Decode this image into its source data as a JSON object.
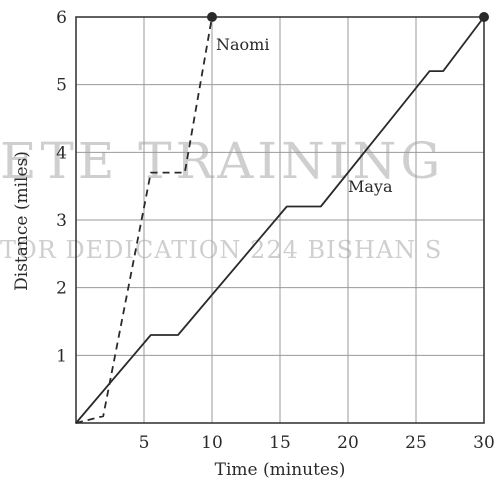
{
  "chart_data": {
    "type": "line",
    "xlabel": "Time (minutes)",
    "ylabel": "Distance (miles)",
    "xlim": [
      0,
      30
    ],
    "ylim": [
      0,
      6
    ],
    "xticks": [
      5,
      10,
      15,
      20,
      25,
      30
    ],
    "yticks": [
      1,
      2,
      3,
      4,
      5,
      6
    ],
    "grid": true,
    "series": [
      {
        "name": "Naomi",
        "style": "dashed",
        "color": "#2a2a2a",
        "points": [
          [
            0,
            0
          ],
          [
            2,
            0.1
          ],
          [
            5.5,
            3.7
          ],
          [
            8,
            3.7
          ],
          [
            10,
            6
          ]
        ],
        "end_marker": true
      },
      {
        "name": "Maya",
        "style": "solid",
        "color": "#2a2a2a",
        "points": [
          [
            0,
            0
          ],
          [
            5.5,
            1.3
          ],
          [
            7.5,
            1.3
          ],
          [
            15.5,
            3.2
          ],
          [
            18,
            3.2
          ],
          [
            26,
            5.2
          ],
          [
            27,
            5.2
          ],
          [
            30,
            6
          ]
        ],
        "end_marker": true
      }
    ]
  },
  "watermark": {
    "line1": "ETE TRAINING",
    "line2": "TOR DEDICATION 224 BISHAN S"
  }
}
